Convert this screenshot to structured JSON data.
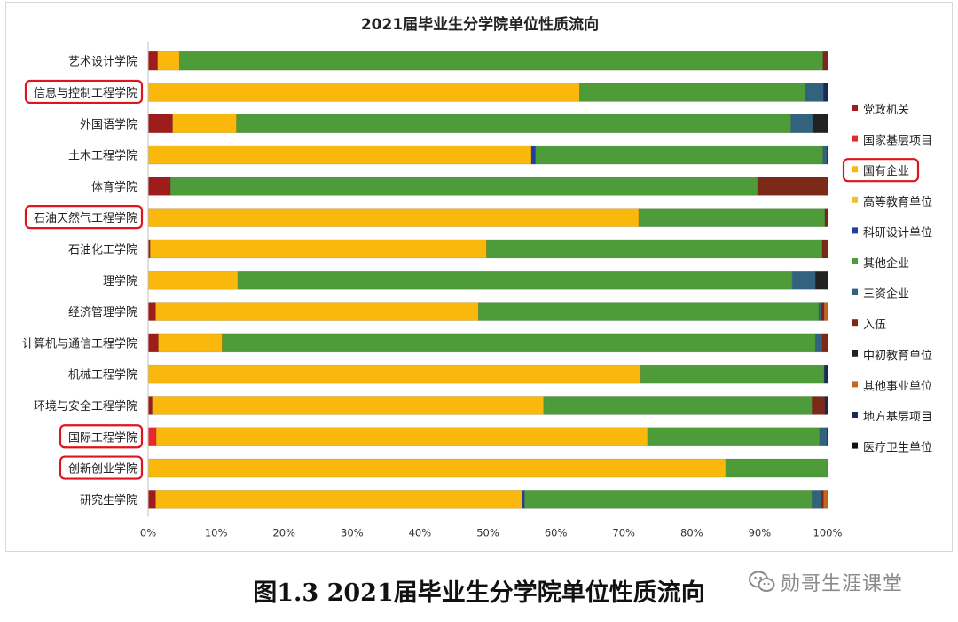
{
  "chart_data": {
    "type": "bar",
    "orientation": "horizontal",
    "stacked": true,
    "title": "2021届毕业生分学院单位性质流向",
    "xlim": [
      0,
      100
    ],
    "x_ticks": [
      "0%",
      "10%",
      "20%",
      "30%",
      "40%",
      "50%",
      "60%",
      "70%",
      "80%",
      "90%",
      "100%"
    ],
    "legend_position": "right",
    "categories": [
      "艺术设计学院",
      "信息与控制工程学院",
      "外国语学院",
      "土木工程学院",
      "体育学院",
      "石油天然气工程学院",
      "石油化工学院",
      "理学院",
      "经济管理学院",
      "计算机与通信工程学院",
      "机械工程学院",
      "环境与安全工程学院",
      "国际工程学院",
      "创新创业学院",
      "研究生学院"
    ],
    "highlighted_categories": [
      "信息与控制工程学院",
      "石油天然气工程学院",
      "国际工程学院",
      "创新创业学院"
    ],
    "highlighted_legend": "国有企业",
    "series": [
      {
        "name": "党政机关",
        "color": "#9e1c1c",
        "values": [
          1.4,
          0,
          3.6,
          0,
          3.3,
          0,
          0.3,
          0,
          1.1,
          1.5,
          0,
          0.6,
          0,
          0,
          1.1
        ]
      },
      {
        "name": "国家基层项目",
        "color": "#e8282a",
        "values": [
          0,
          0,
          0,
          0,
          0,
          0,
          0,
          0,
          0,
          0,
          0,
          0,
          1.2,
          0,
          0
        ]
      },
      {
        "name": "国有企业",
        "color": "#fbb80c",
        "values": [
          3.2,
          63.5,
          9.4,
          56.4,
          0,
          72.2,
          49.5,
          13.2,
          47.5,
          9.4,
          72.5,
          57.6,
          72.3,
          85.0,
          54.0
        ]
      },
      {
        "name": "高等教育单位",
        "color": "#f4bd2a",
        "values": [
          0,
          0,
          0,
          0,
          0,
          0,
          0,
          0,
          0,
          0,
          0,
          0,
          0,
          0,
          0
        ]
      },
      {
        "name": "科研设计单位",
        "color": "#1f3fa0",
        "values": [
          0,
          0,
          0,
          0.6,
          0,
          0,
          0,
          0,
          0,
          0,
          0,
          0,
          0,
          0,
          0.3
        ]
      },
      {
        "name": "其他企业",
        "color": "#4e9c39",
        "values": [
          94.7,
          33.3,
          81.6,
          42.3,
          86.4,
          27.4,
          49.4,
          81.6,
          50.1,
          87.3,
          27.0,
          39.5,
          25.3,
          15.0,
          42.3
        ]
      },
      {
        "name": "三资企业",
        "color": "#33627f",
        "values": [
          0,
          2.6,
          3.2,
          0.6,
          0,
          0,
          0,
          3.4,
          0.3,
          1.0,
          0,
          0,
          1.1,
          0,
          1.3
        ]
      },
      {
        "name": "入伍",
        "color": "#7a2a17",
        "values": [
          0.7,
          0,
          0,
          0,
          10.3,
          0.4,
          0.8,
          0,
          0.5,
          0.8,
          0,
          1.9,
          0,
          0,
          0.4
        ]
      },
      {
        "name": "中初教育单位",
        "color": "#222222",
        "values": [
          0,
          0,
          2.2,
          0,
          0,
          0,
          0,
          1.8,
          0,
          0,
          0,
          0,
          0,
          0,
          0
        ]
      },
      {
        "name": "其他事业单位",
        "color": "#c4661f",
        "values": [
          0,
          0,
          0,
          0,
          0,
          0,
          0,
          0,
          0.5,
          0,
          0,
          0,
          0,
          0,
          0.6
        ]
      },
      {
        "name": "地方基层项目",
        "color": "#1c2a55",
        "values": [
          0,
          0.6,
          0,
          0.1,
          0,
          0,
          0,
          0,
          0,
          0,
          0.5,
          0.4,
          0.1,
          0,
          0
        ]
      },
      {
        "name": "医疗卫生单位",
        "color": "#111111",
        "values": [
          0,
          0,
          0,
          0,
          0,
          0,
          0,
          0,
          0,
          0,
          0,
          0,
          0,
          0,
          0
        ]
      }
    ]
  },
  "caption": "图1.3 2021届毕业生分学院单位性质流向",
  "watermark": "勋哥生涯课堂"
}
